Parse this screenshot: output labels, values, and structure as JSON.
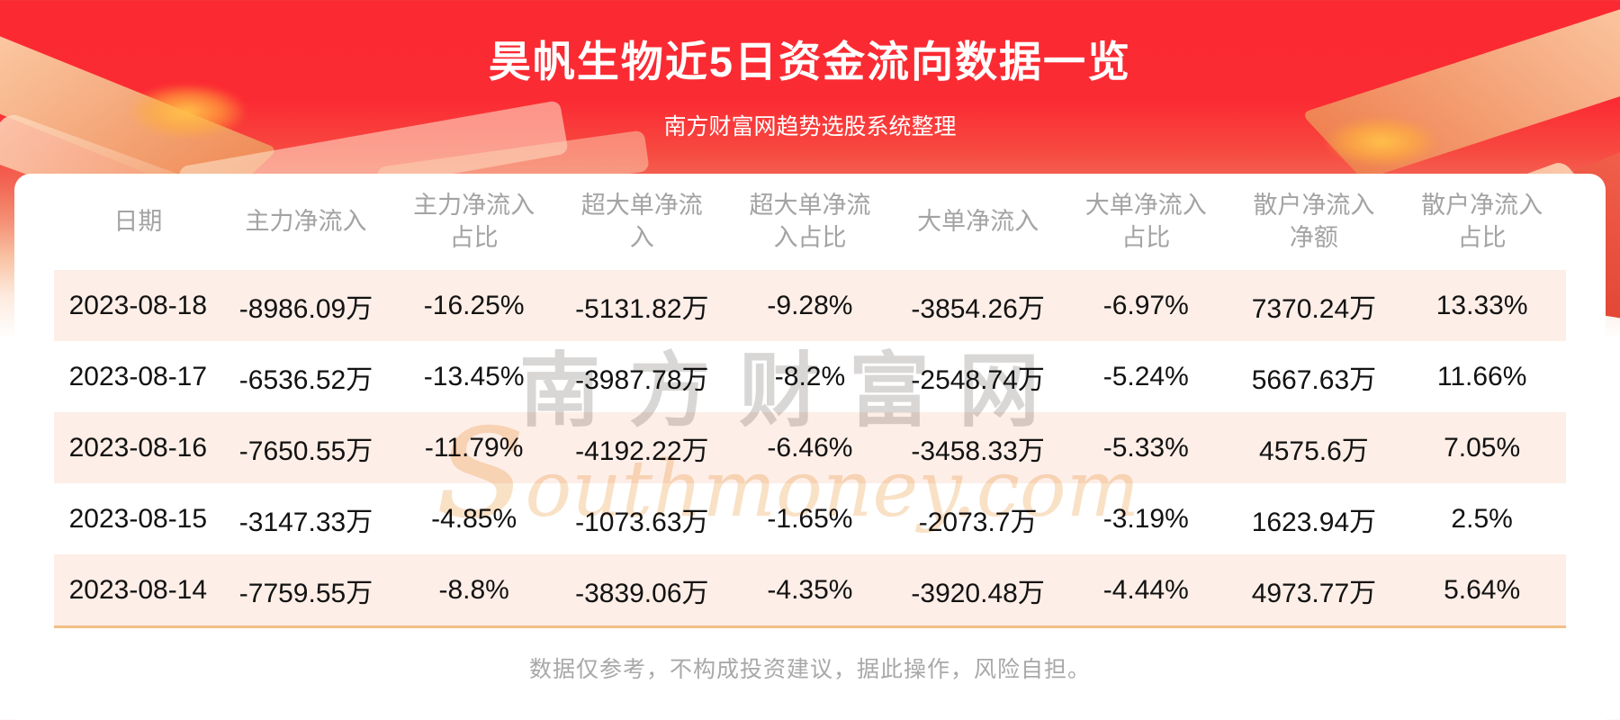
{
  "page": {
    "title": "昊帆生物近5日资金流向数据一览",
    "subtitle": "南方财富网趋势选股系统整理",
    "disclaimer": "数据仅参考，不构成投资建议，据此操作，风险自担。"
  },
  "watermark": {
    "cn": "南方财富网",
    "en": "southmoney.com"
  },
  "colors": {
    "banner_red": "#fb2a32",
    "decor_orange": "#ef8a55",
    "decor_gold": "#ffae3c",
    "row_stripe": "#fdeee7",
    "table_bottom_border": "#f3c084",
    "header_text_gray": "#a3a3a3",
    "cell_text": "#121212",
    "title_text": "#ffffff"
  },
  "chart_data": {
    "type": "table",
    "title": "昊帆生物近5日资金流向数据一览",
    "columns": [
      "日期",
      "主力净流入",
      "主力净流入占比",
      "超大单净流入",
      "超大单净流入占比",
      "大单净流入",
      "大单净流入占比",
      "散户净流入净额",
      "散户净流入占比"
    ],
    "columns_wrapped": [
      "日期",
      "主力净流入",
      "主力净流入\n占比",
      "超大单净流\n入",
      "超大单净流\n入占比",
      "大单净流入",
      "大单净流入\n占比",
      "散户净流入\n净额",
      "散户净流入\n占比"
    ],
    "rows": [
      [
        "2023-08-18",
        "-8986.09万",
        "-16.25%",
        "-5131.82万",
        "-9.28%",
        "-3854.26万",
        "-6.97%",
        "7370.24万",
        "13.33%"
      ],
      [
        "2023-08-17",
        "-6536.52万",
        "-13.45%",
        "-3987.78万",
        "-8.2%",
        "-2548.74万",
        "-5.24%",
        "5667.63万",
        "11.66%"
      ],
      [
        "2023-08-16",
        "-7650.55万",
        "-11.79%",
        "-4192.22万",
        "-6.46%",
        "-3458.33万",
        "-5.33%",
        "4575.6万",
        "7.05%"
      ],
      [
        "2023-08-15",
        "-3147.33万",
        "-4.85%",
        "-1073.63万",
        "-1.65%",
        "-2073.7万",
        "-3.19%",
        "1623.94万",
        "2.5%"
      ],
      [
        "2023-08-14",
        "-7759.55万",
        "-8.8%",
        "-3839.06万",
        "-4.35%",
        "-3920.48万",
        "-4.44%",
        "4973.77万",
        "5.64%"
      ]
    ]
  }
}
